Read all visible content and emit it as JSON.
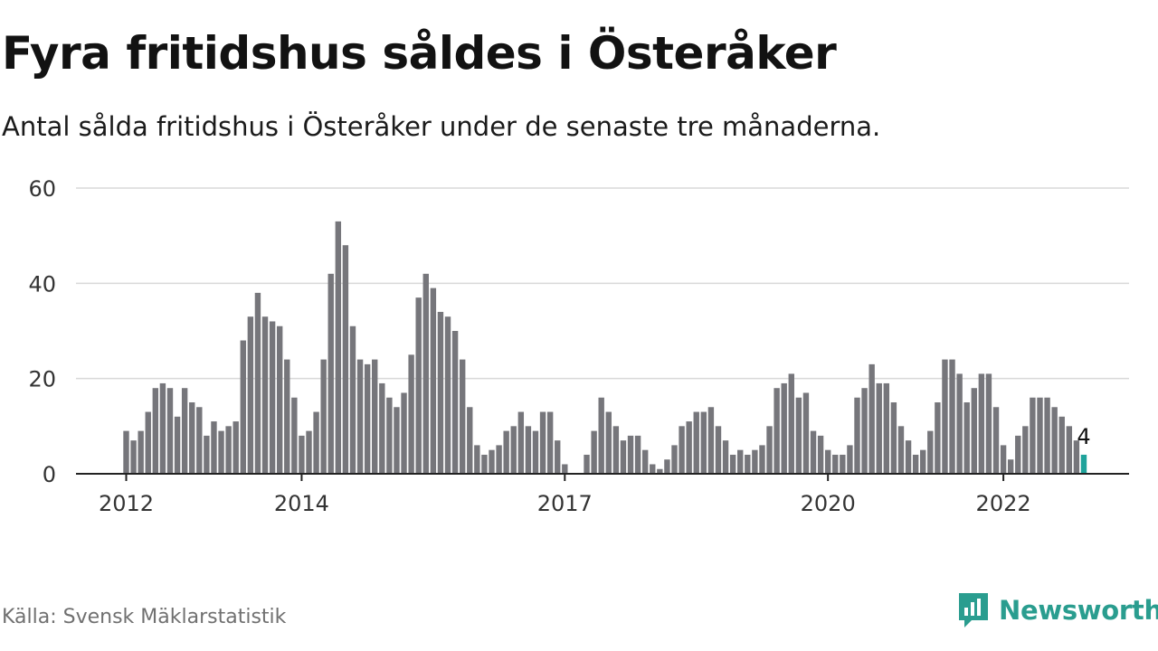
{
  "title": "Fyra fritidshus såldes i Österåker",
  "subtitle": "Antal sålda fritidshus i Österåker under de senaste tre månaderna.",
  "source": "Källa: Svensk Mäklarstatistik",
  "brand": {
    "name": "Newsworthy",
    "icon": "newsworthy-logo-icon",
    "color": "#2a9d8f"
  },
  "chart_data": {
    "type": "bar",
    "x_start": "2012-01",
    "frequency": "monthly",
    "values": [
      9,
      7,
      9,
      13,
      18,
      19,
      18,
      12,
      18,
      15,
      14,
      8,
      11,
      9,
      10,
      11,
      28,
      33,
      38,
      33,
      32,
      31,
      24,
      16,
      8,
      9,
      13,
      24,
      42,
      53,
      48,
      31,
      24,
      23,
      24,
      19,
      16,
      14,
      17,
      25,
      37,
      42,
      39,
      34,
      33,
      30,
      24,
      14,
      6,
      4,
      5,
      6,
      9,
      10,
      13,
      10,
      9,
      13,
      13,
      7,
      2,
      0,
      0,
      4,
      9,
      16,
      13,
      10,
      7,
      8,
      8,
      5,
      2,
      1,
      3,
      6,
      10,
      11,
      13,
      13,
      14,
      10,
      7,
      4,
      5,
      4,
      5,
      6,
      10,
      18,
      19,
      21,
      16,
      17,
      9,
      8,
      5,
      4,
      4,
      6,
      16,
      18,
      23,
      19,
      19,
      15,
      10,
      7,
      4,
      5,
      9,
      15,
      24,
      24,
      21,
      15,
      18,
      21,
      21,
      14,
      6,
      3,
      8,
      10,
      16,
      16,
      16,
      14,
      12,
      10,
      7,
      4
    ],
    "xtick_labels": [
      "2012",
      "2014",
      "2017",
      "2020",
      "2022"
    ],
    "ytick_labels": [
      "0",
      "20",
      "40",
      "60"
    ],
    "ylim": [
      0,
      60
    ],
    "annotation": {
      "text": "4",
      "value": 4
    },
    "bar_color": "#76767b",
    "highlight_color": "#1fa39b",
    "grid": true,
    "legend": "none"
  }
}
